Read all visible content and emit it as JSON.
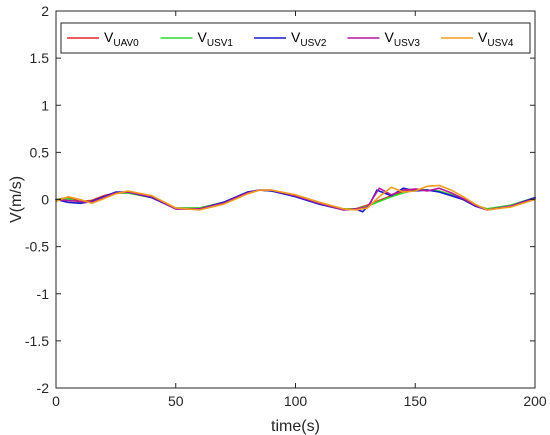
{
  "chart_data": {
    "type": "line",
    "xlabel": "time(s)",
    "ylabel": "V(m/s)",
    "xlim": [
      0,
      200
    ],
    "ylim": [
      -2,
      2
    ],
    "x_ticks": [
      0,
      50,
      100,
      150,
      200
    ],
    "y_ticks": [
      -2,
      -1.5,
      -1,
      -0.5,
      0,
      0.5,
      1,
      1.5,
      2
    ],
    "grid": false,
    "legend_placement": "top",
    "legend_orientation": "horizontal",
    "series": [
      {
        "name": "V",
        "subscript": "UAV0",
        "color": "#e8262b",
        "x": [
          0,
          5,
          10,
          15,
          20,
          25,
          30,
          40,
          50,
          60,
          70,
          80,
          85,
          90,
          100,
          110,
          120,
          125,
          130,
          135,
          140,
          145,
          150,
          155,
          160,
          165,
          170,
          175,
          180,
          190,
          200
        ],
        "y": [
          0,
          0.02,
          -0.02,
          -0.01,
          0.04,
          0.07,
          0.07,
          0.02,
          -0.09,
          -0.09,
          -0.03,
          0.07,
          0.1,
          0.09,
          0.04,
          -0.04,
          -0.1,
          -0.1,
          -0.06,
          -0.01,
          0.04,
          0.08,
          0.11,
          0.1,
          0.09,
          0.05,
          0.0,
          -0.06,
          -0.1,
          -0.06,
          0.02
        ]
      },
      {
        "name": "V",
        "subscript": "USV1",
        "color": "#2bdc2b",
        "x": [
          0,
          5,
          10,
          15,
          20,
          25,
          30,
          40,
          50,
          60,
          70,
          80,
          85,
          90,
          100,
          110,
          120,
          125,
          130,
          135,
          140,
          145,
          150,
          155,
          160,
          165,
          170,
          175,
          180,
          190,
          200
        ],
        "y": [
          0,
          0.01,
          -0.03,
          -0.02,
          0.03,
          0.07,
          0.07,
          0.02,
          -0.09,
          -0.09,
          -0.03,
          0.07,
          0.1,
          0.09,
          0.04,
          -0.04,
          -0.1,
          -0.1,
          -0.07,
          -0.02,
          0.03,
          0.07,
          0.1,
          0.1,
          0.09,
          0.05,
          0.0,
          -0.06,
          -0.1,
          -0.06,
          0.02
        ]
      },
      {
        "name": "V",
        "subscript": "USV2",
        "color": "#1a1acc",
        "x": [
          0,
          5,
          10,
          15,
          20,
          25,
          30,
          40,
          50,
          60,
          70,
          80,
          85,
          90,
          100,
          110,
          120,
          125,
          128,
          131,
          134,
          137,
          140,
          145,
          150,
          155,
          160,
          165,
          170,
          175,
          180,
          190,
          200
        ],
        "y": [
          0,
          -0.03,
          -0.04,
          -0.02,
          0.03,
          0.08,
          0.08,
          0.02,
          -0.1,
          -0.1,
          -0.03,
          0.08,
          0.1,
          0.09,
          0.03,
          -0.05,
          -0.11,
          -0.1,
          -0.13,
          -0.05,
          0.1,
          0.07,
          0.04,
          0.12,
          0.09,
          0.1,
          0.08,
          0.04,
          0.0,
          -0.07,
          -0.11,
          -0.07,
          0.02
        ]
      },
      {
        "name": "V",
        "subscript": "USV3",
        "color": "#b7199d",
        "x": [
          0,
          5,
          10,
          15,
          20,
          25,
          30,
          40,
          50,
          60,
          70,
          80,
          85,
          90,
          100,
          110,
          120,
          125,
          130,
          135,
          140,
          145,
          150,
          155,
          160,
          165,
          170,
          175,
          180,
          190,
          200
        ],
        "y": [
          0,
          -0.01,
          -0.02,
          -0.03,
          0.02,
          0.07,
          0.08,
          0.03,
          -0.1,
          -0.1,
          -0.04,
          0.07,
          0.1,
          0.1,
          0.04,
          -0.04,
          -0.11,
          -0.1,
          -0.08,
          0.12,
          0.05,
          0.1,
          0.11,
          0.09,
          0.12,
          0.07,
          0.01,
          -0.06,
          -0.11,
          -0.07,
          0.01
        ]
      },
      {
        "name": "V",
        "subscript": "USV4",
        "color": "#f39c1c",
        "x": [
          0,
          5,
          10,
          15,
          20,
          25,
          30,
          40,
          50,
          60,
          70,
          80,
          85,
          90,
          100,
          110,
          120,
          125,
          130,
          135,
          140,
          145,
          150,
          155,
          160,
          165,
          170,
          175,
          180,
          190,
          200
        ],
        "y": [
          -0.02,
          0.03,
          0.0,
          -0.04,
          0.01,
          0.06,
          0.09,
          0.04,
          -0.09,
          -0.11,
          -0.05,
          0.06,
          0.1,
          0.1,
          0.05,
          -0.03,
          -0.1,
          -0.11,
          -0.09,
          0.03,
          0.13,
          0.08,
          0.09,
          0.14,
          0.15,
          0.1,
          0.03,
          -0.05,
          -0.11,
          -0.08,
          0.0
        ]
      }
    ]
  }
}
